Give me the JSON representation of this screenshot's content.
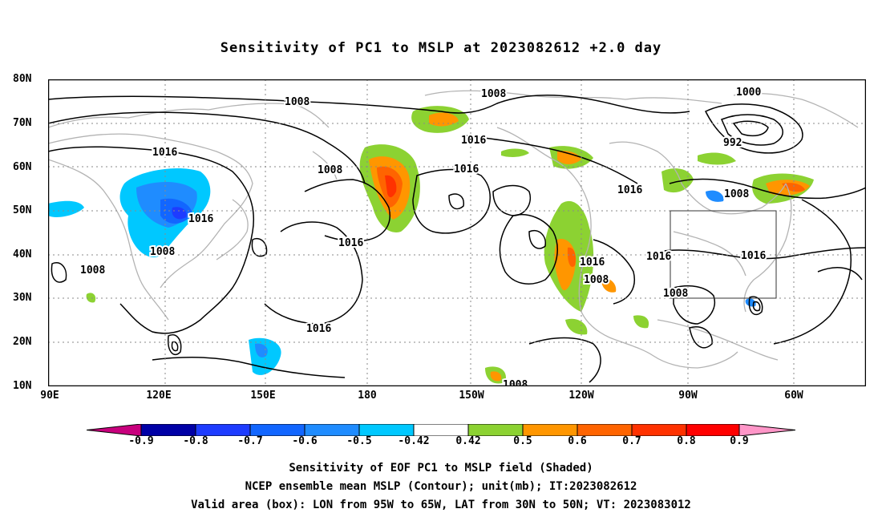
{
  "title": "Sensitivity of PC1 to MSLP at 2023082612 +2.0 day",
  "map": {
    "lat_labels": [
      "80N",
      "70N",
      "60N",
      "50N",
      "40N",
      "30N",
      "20N",
      "10N"
    ],
    "lon_labels": [
      "90E",
      "120E",
      "150E",
      "180",
      "150W",
      "120W",
      "90W",
      "60W"
    ],
    "contour_labels": [
      "1008",
      "1008",
      "1016",
      "1008",
      "1016",
      "1016",
      "1016",
      "1008",
      "1016",
      "1008",
      "1000",
      "992",
      "1016",
      "1008",
      "1016",
      "1016",
      "1008",
      "1016",
      "1008",
      "1016",
      "1008"
    ],
    "valid_box": {
      "lon_from": "95W",
      "lon_to": "65W",
      "lat_from": "30N",
      "lat_to": "50N"
    },
    "colors": {
      "coast": "#b3b3b3",
      "contour": "#000000",
      "grid": "#8a8a8a"
    }
  },
  "colorbar": {
    "labels": [
      "-0.9",
      "-0.8",
      "-0.7",
      "-0.6",
      "-0.5",
      "-0.42",
      "0.42",
      "0.5",
      "0.6",
      "0.7",
      "0.8",
      "0.9"
    ],
    "colors": [
      "#c8007d",
      "#0000a6",
      "#1e3cff",
      "#1266ff",
      "#1f8cff",
      "#00c8ff",
      "#ffffff",
      "#8cd232",
      "#ff9600",
      "#ff6400",
      "#ff3200",
      "#ff0000",
      "#ff96c8"
    ]
  },
  "captions": [
    "Sensitivity of EOF PC1 to MSLP field (Shaded)",
    "NCEP ensemble mean MSLP (Contour); unit(mb); IT:2023082612",
    "Valid area (box): LON from 95W to 65W, LAT from 30N to 50N; VT: 2023083012"
  ]
}
